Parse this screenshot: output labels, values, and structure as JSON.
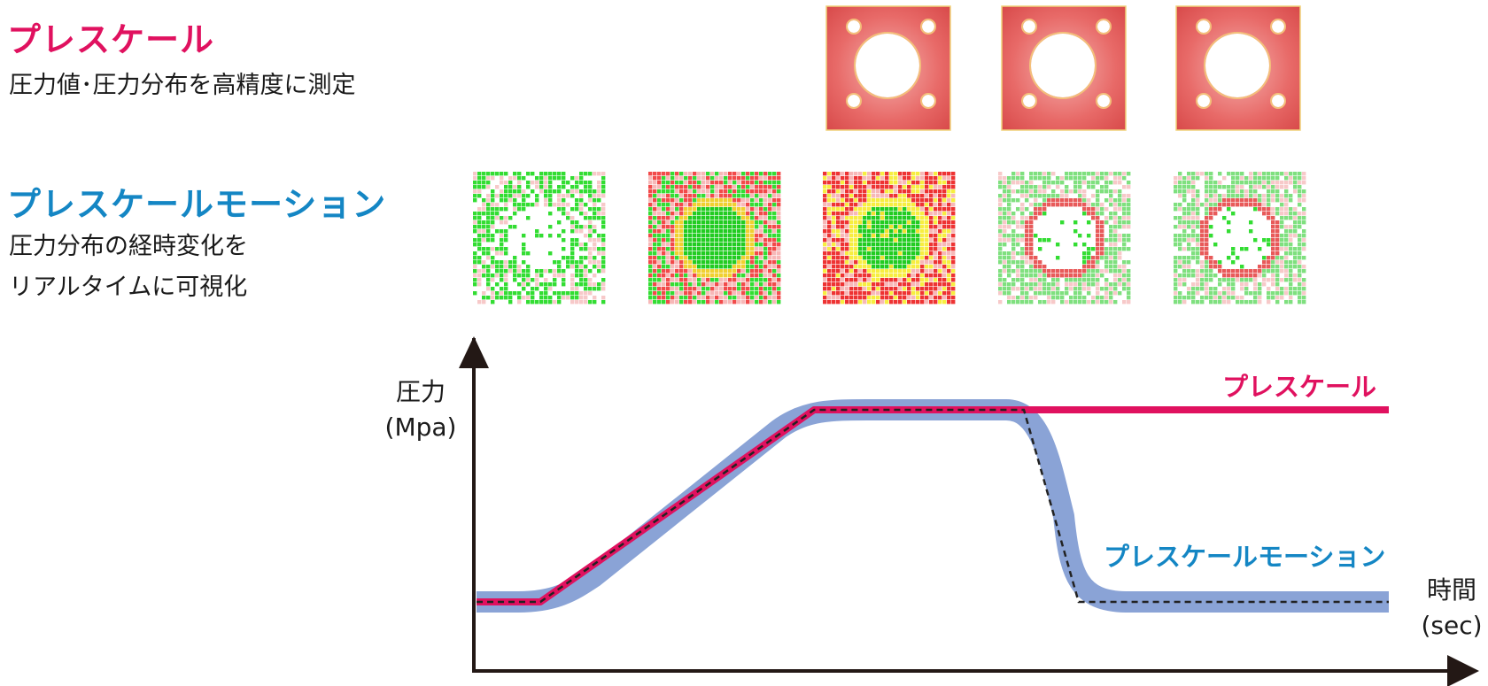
{
  "prescale": {
    "title": "プレスケール",
    "subtitle": "圧力値･圧力分布を高精度に測定"
  },
  "prescale_motion": {
    "title": "プレスケールモーション",
    "subtitle_line1": "圧力分布の経時変化を",
    "subtitle_line2": "リアルタイムに可視化"
  },
  "chart_labels": {
    "y_axis_line1": "圧力",
    "y_axis_line2": "(Mpa)",
    "x_axis_line1": "時間",
    "x_axis_line2": "(sec)",
    "series_prescale": "プレスケール",
    "series_motion": "プレスケールモーション"
  },
  "colors": {
    "prescale": "#e0115f",
    "motion": "#1486c4",
    "motion_band": "#8aa3d6",
    "axis": "#231815"
  },
  "chart_data": {
    "type": "line",
    "xlabel": "時間 (sec)",
    "ylabel": "圧力 (Mpa)",
    "grid": false,
    "series": [
      {
        "name": "プレスケール",
        "x": [
          0,
          0.07,
          0.37,
          1.0
        ],
        "y": [
          0.1,
          0.1,
          1.0,
          1.0
        ]
      },
      {
        "name": "プレスケールモーション",
        "x": [
          0,
          0.07,
          0.37,
          0.6,
          0.66,
          1.0
        ],
        "y": [
          0.1,
          0.1,
          1.0,
          1.0,
          0.1,
          0.1
        ]
      }
    ]
  }
}
